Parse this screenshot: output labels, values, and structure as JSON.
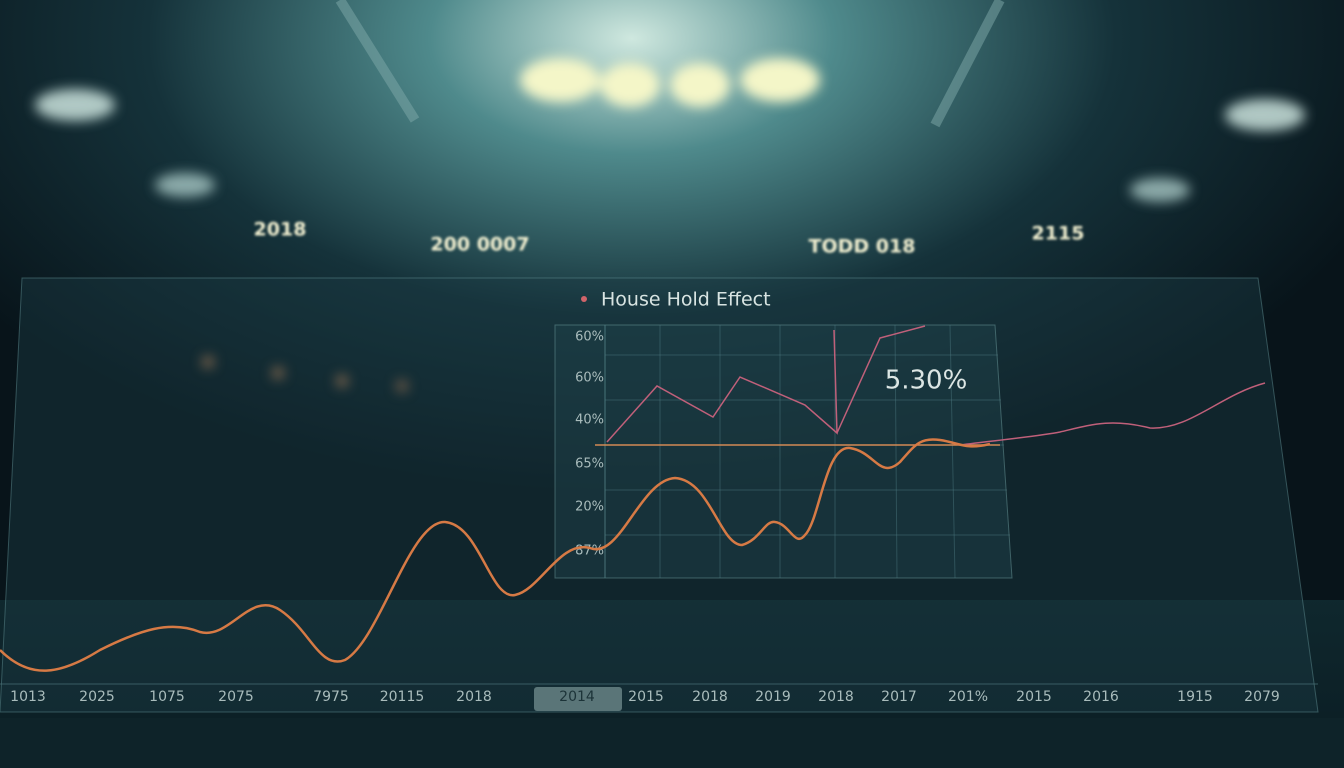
{
  "signs": [
    "2018",
    "200 0007",
    "TODD 018",
    "2115"
  ],
  "panel": {
    "legend": "House Hold Effect",
    "y_labels": [
      "60%",
      "60%",
      "40%",
      "65%",
      "20%",
      "87%"
    ],
    "callout": "5.30%"
  },
  "x_labels": [
    "1013",
    "2025",
    "1075",
    "2075",
    "7975",
    "20115",
    "2018",
    "2014",
    "2015",
    "2018",
    "2019",
    "2018",
    "2017",
    "201%",
    "2015",
    "2016",
    "1915",
    "2079"
  ],
  "selected_label": 7
}
